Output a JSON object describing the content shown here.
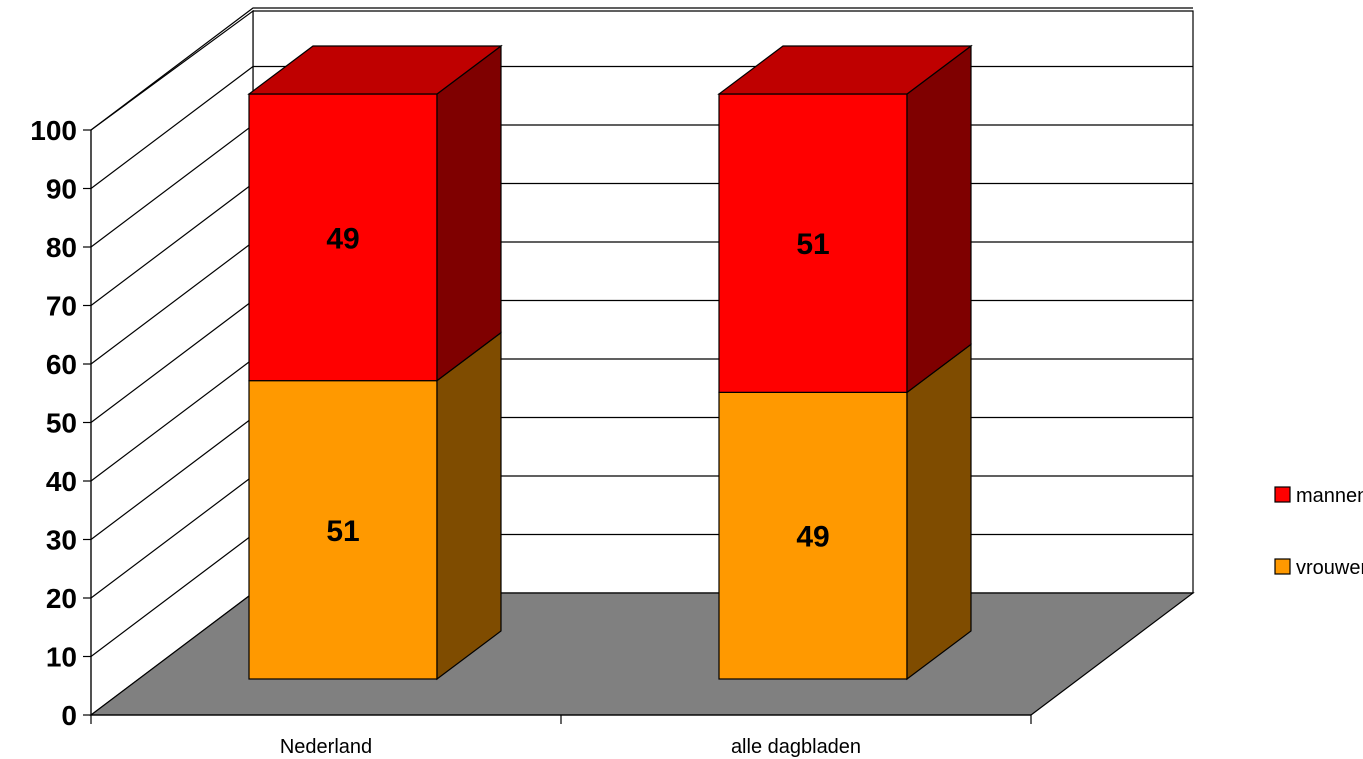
{
  "chart_data": {
    "type": "bar",
    "stacked": true,
    "three_d": true,
    "categories": [
      "Nederland",
      "alle dagbladen"
    ],
    "series": [
      {
        "name": "vrouwen",
        "values": [
          51,
          49
        ],
        "color": "#FF9900",
        "side_color": "#7F4C00",
        "data_labels": [
          "51",
          "49"
        ]
      },
      {
        "name": "mannen",
        "values": [
          49,
          51
        ],
        "color": "#FF0000",
        "side_color": "#7F0000",
        "top_color": "#BF0000",
        "data_labels": [
          "49",
          "51"
        ]
      }
    ],
    "ylim": [
      0,
      100
    ],
    "yticks": [
      "0",
      "10",
      "20",
      "30",
      "40",
      "50",
      "60",
      "70",
      "80",
      "90",
      "100"
    ],
    "grid": true,
    "legend": {
      "placement": "right",
      "items": [
        "mannen",
        "vrouwen"
      ]
    },
    "floor_color": "#808080",
    "title": "",
    "xlabel": "",
    "ylabel": ""
  }
}
